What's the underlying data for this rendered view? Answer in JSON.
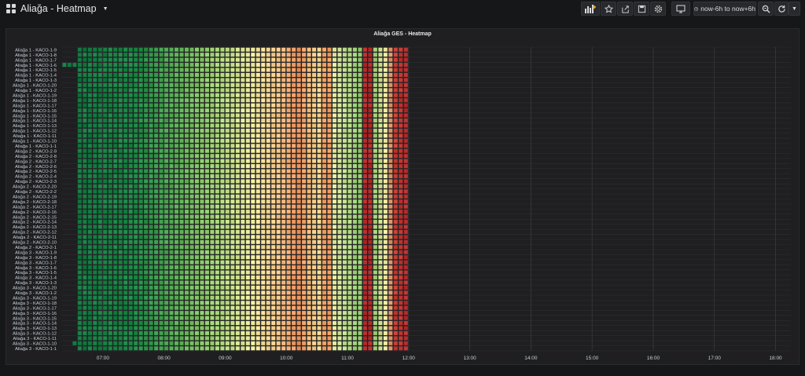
{
  "dashboard": {
    "title": "Aliağa - Heatmap"
  },
  "toolbar": {
    "icons": [
      "add-panel-icon",
      "star-icon",
      "share-icon",
      "save-icon",
      "settings-icon",
      "monitor-icon",
      "clock-icon",
      "zoom-out-icon",
      "refresh-icon",
      "caret-down-icon"
    ],
    "time_range": "now-6h to now+6h"
  },
  "panel": {
    "title": "Aliağa GES - Heatmap"
  },
  "chart_data": {
    "type": "heatmap",
    "title": "Aliağa GES - Heatmap",
    "x_ticks": [
      "07:00",
      "08:00",
      "09:00",
      "10:00",
      "11:00",
      "12:00",
      "13:00",
      "14:00",
      "15:00",
      "16:00",
      "17:00",
      "18:00"
    ],
    "x_range": [
      "06:20",
      "18:15"
    ],
    "data_range": [
      "06:35",
      "12:00"
    ],
    "sparse_start_row": 3,
    "sparse_start": "06:20",
    "y_labels": [
      "Aliağa 1 - KACO-1-9",
      "Aliağa 1 - KACO-1-8",
      "Aliağa 1 - KACO-1-7",
      "Aliağa 1 - KACO-1-6",
      "Aliağa 1 - KACO-1-5",
      "Aliağa 1 - KACO-1-4",
      "Aliağa 1 - KACO-1-3",
      "Aliağa 1 - KACO-1-20",
      "Aliağa 1 - KACO-1-2",
      "Aliağa 1 - KACO-1-19",
      "Aliağa 1 - KACO-1-18",
      "Aliağa 1 - KACO-1-17",
      "Aliağa 1 - KACO-1-16",
      "Aliağa 1 - KACO-1-15",
      "Aliağa 1 - KACO-1-14",
      "Aliağa 1 - KACO-1-13",
      "Aliağa 1 - KACO-1-12",
      "Aliağa 1 - KACO-1-11",
      "Aliağa 1 - KACO-1-10",
      "Aliağa 1 - KACO-1-1",
      "Aliağa 2 - KACO-2-9",
      "Aliağa 2 - KACO-2-8",
      "Aliağa 2 - KACO-2-7",
      "Aliağa 2 - KACO-2-6",
      "Aliağa 2 - KACO-2-5",
      "Aliağa 2 - KACO-2-4",
      "Aliağa 2 - KACO-2-3",
      "Aliağa 2 - KACO-2-20",
      "Aliağa 2 - KACO-2-2",
      "Aliağa 2 - KACO-2-19",
      "Aliağa 2 - KACO-2-18",
      "Aliağa 2 - KACO-2-17",
      "Aliağa 2 - KACO-2-16",
      "Aliağa 2 - KACO-2-15",
      "Aliağa 2 - KACO-2-14",
      "Aliağa 2 - KACO-2-13",
      "Aliağa 2 - KACO-2-12",
      "Aliağa 2 - KACO-2-11",
      "Aliağa 2 - KACO-2-10",
      "Aliağa 2 - KACO-2-1",
      "Aliağa 3 - KACO-1-9",
      "Aliağa 3 - KACO-1-8",
      "Aliağa 3 - KACO-1-7",
      "Aliağa 3 - KACO-1-6",
      "Aliağa 3 - KACO-1-5",
      "Aliağa 3 - KACO-1-4",
      "Aliağa 3 - KACO-1-3",
      "Aliağa 3 - KACO-1-20",
      "Aliağa 3 - KACO-1-2",
      "Aliağa 3 - KACO-1-19",
      "Aliağa 3 - KACO-1-18",
      "Aliağa 3 - KACO-1-17",
      "Aliağa 3 - KACO-1-16",
      "Aliağa 3 - KACO-1-15",
      "Aliağa 3 - KACO-1-14",
      "Aliağa 3 - KACO-1-13",
      "Aliağa 3 - KACO-1-12",
      "Aliağa 3 - KACO-1-11",
      "Aliağa 3 - KACO-1-10",
      "Aliağa 3 - KACO-1-1"
    ],
    "color_stops": [
      {
        "time": "06:35",
        "color": "#117a41"
      },
      {
        "time": "07:30",
        "color": "#1a8a44"
      },
      {
        "time": "08:15",
        "color": "#60b556"
      },
      {
        "time": "08:55",
        "color": "#b4dc7e"
      },
      {
        "time": "09:25",
        "color": "#f2eda0"
      },
      {
        "time": "09:50",
        "color": "#f7c787"
      },
      {
        "time": "10:10",
        "color": "#f0935c"
      },
      {
        "time": "10:25",
        "color": "#f5cc86"
      },
      {
        "time": "10:40",
        "color": "#f1eea8"
      },
      {
        "time": "10:55",
        "color": "#bfe08c"
      },
      {
        "time": "11:20",
        "color": "#7cc062"
      },
      {
        "time": "11:35",
        "color": "#f0eaa0"
      },
      {
        "time": "11:45",
        "color": "#c93c32"
      },
      {
        "time": "12:00",
        "color": "#b3262b"
      }
    ],
    "hot_columns": [
      {
        "time": "10:35",
        "color": "#f2a062"
      },
      {
        "time": "10:40",
        "color": "#f2a062"
      },
      {
        "time": "11:15",
        "color": "#bb2a2a"
      },
      {
        "time": "11:20",
        "color": "#bb2a2a"
      }
    ],
    "bucket_minutes": 5
  }
}
